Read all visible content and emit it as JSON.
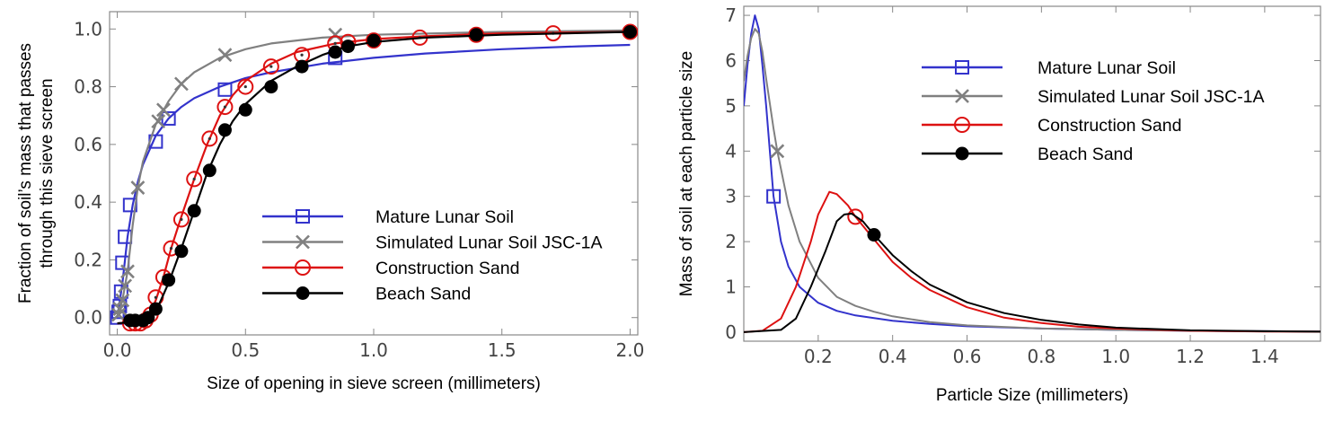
{
  "chart_data": [
    {
      "type": "line",
      "xlabel": "Size of opening in sieve screen (millimeters)",
      "ylabel_lines": [
        "Fraction of soil’s mass that passes",
        "through this sieve screen"
      ],
      "xlim": [
        -0.03,
        2.03
      ],
      "ylim": [
        -0.06,
        1.06
      ],
      "xticks": [
        0.0,
        0.5,
        1.0,
        1.5,
        2.0
      ],
      "xtick_labels": [
        "0.0",
        "0.5",
        "1.0",
        "1.5",
        "2.0"
      ],
      "yticks": [
        0.0,
        0.2,
        0.4,
        0.6,
        0.8,
        1.0
      ],
      "ytick_labels": [
        "0.0",
        "0.2",
        "0.4",
        "0.6",
        "0.8",
        "1.0"
      ],
      "grid": false,
      "legend_position": "bottom-right",
      "series": [
        {
          "name": "Mature Lunar Soil",
          "color": "#3333cc",
          "marker": "open-square",
          "points": [
            [
              0.0,
              0.0
            ],
            [
              0.005,
              0.02
            ],
            [
              0.01,
              0.04
            ],
            [
              0.015,
              0.09
            ],
            [
              0.02,
              0.19
            ],
            [
              0.03,
              0.28
            ],
            [
              0.05,
              0.39
            ],
            [
              0.15,
              0.61
            ],
            [
              0.2,
              0.69
            ],
            [
              0.42,
              0.79
            ],
            [
              0.85,
              0.9
            ]
          ],
          "curve": [
            [
              0.0,
              0.0
            ],
            [
              0.02,
              0.12
            ],
            [
              0.04,
              0.28
            ],
            [
              0.06,
              0.39
            ],
            [
              0.08,
              0.47
            ],
            [
              0.1,
              0.53
            ],
            [
              0.15,
              0.63
            ],
            [
              0.2,
              0.69
            ],
            [
              0.25,
              0.73
            ],
            [
              0.3,
              0.76
            ],
            [
              0.4,
              0.8
            ],
            [
              0.5,
              0.83
            ],
            [
              0.6,
              0.85
            ],
            [
              0.8,
              0.88
            ],
            [
              1.0,
              0.9
            ],
            [
              1.2,
              0.915
            ],
            [
              1.5,
              0.93
            ],
            [
              1.8,
              0.94
            ],
            [
              2.0,
              0.945
            ]
          ]
        },
        {
          "name": "Simulated Lunar Soil JSC-1A",
          "color": "#808080",
          "marker": "x",
          "points": [
            [
              0.005,
              0.01
            ],
            [
              0.01,
              0.03
            ],
            [
              0.02,
              0.06
            ],
            [
              0.03,
              0.11
            ],
            [
              0.04,
              0.16
            ],
            [
              0.08,
              0.45
            ],
            [
              0.16,
              0.68
            ],
            [
              0.18,
              0.72
            ],
            [
              0.25,
              0.81
            ],
            [
              0.42,
              0.91
            ],
            [
              0.85,
              0.98
            ]
          ],
          "curve": [
            [
              0.0,
              0.0
            ],
            [
              0.02,
              0.06
            ],
            [
              0.04,
              0.16
            ],
            [
              0.06,
              0.32
            ],
            [
              0.08,
              0.45
            ],
            [
              0.1,
              0.54
            ],
            [
              0.15,
              0.67
            ],
            [
              0.2,
              0.75
            ],
            [
              0.25,
              0.81
            ],
            [
              0.3,
              0.85
            ],
            [
              0.4,
              0.9
            ],
            [
              0.5,
              0.93
            ],
            [
              0.6,
              0.95
            ],
            [
              0.8,
              0.97
            ],
            [
              1.0,
              0.98
            ],
            [
              1.5,
              0.99
            ],
            [
              2.0,
              0.995
            ]
          ]
        },
        {
          "name": "Construction Sand",
          "color": "#dd1111",
          "marker": "open-circle",
          "points": [
            [
              0.05,
              -0.02
            ],
            [
              0.07,
              -0.02
            ],
            [
              0.09,
              -0.02
            ],
            [
              0.11,
              -0.01
            ],
            [
              0.13,
              0.01
            ],
            [
              0.15,
              0.07
            ],
            [
              0.18,
              0.14
            ],
            [
              0.21,
              0.24
            ],
            [
              0.25,
              0.34
            ],
            [
              0.3,
              0.48
            ],
            [
              0.36,
              0.62
            ],
            [
              0.42,
              0.73
            ],
            [
              0.5,
              0.8
            ],
            [
              0.6,
              0.87
            ],
            [
              0.72,
              0.91
            ],
            [
              0.85,
              0.95
            ],
            [
              0.9,
              0.955
            ],
            [
              1.0,
              0.96
            ],
            [
              1.18,
              0.97
            ],
            [
              1.4,
              0.98
            ],
            [
              1.7,
              0.985
            ],
            [
              2.0,
              0.99
            ]
          ],
          "curve": [
            [
              0.0,
              -0.02
            ],
            [
              0.1,
              -0.015
            ],
            [
              0.12,
              0.0
            ],
            [
              0.15,
              0.06
            ],
            [
              0.18,
              0.14
            ],
            [
              0.21,
              0.24
            ],
            [
              0.25,
              0.35
            ],
            [
              0.3,
              0.48
            ],
            [
              0.35,
              0.6
            ],
            [
              0.4,
              0.7
            ],
            [
              0.45,
              0.77
            ],
            [
              0.5,
              0.82
            ],
            [
              0.6,
              0.88
            ],
            [
              0.7,
              0.92
            ],
            [
              0.85,
              0.95
            ],
            [
              1.0,
              0.965
            ],
            [
              1.2,
              0.975
            ],
            [
              1.5,
              0.985
            ],
            [
              2.0,
              0.99
            ]
          ]
        },
        {
          "name": "Beach Sand",
          "color": "#000000",
          "marker": "filled-circle",
          "points": [
            [
              0.05,
              -0.01
            ],
            [
              0.07,
              -0.01
            ],
            [
              0.1,
              -0.01
            ],
            [
              0.12,
              0.0
            ],
            [
              0.15,
              0.03
            ],
            [
              0.2,
              0.13
            ],
            [
              0.25,
              0.23
            ],
            [
              0.3,
              0.37
            ],
            [
              0.36,
              0.51
            ],
            [
              0.42,
              0.65
            ],
            [
              0.5,
              0.72
            ],
            [
              0.6,
              0.8
            ],
            [
              0.72,
              0.87
            ],
            [
              0.85,
              0.92
            ],
            [
              0.9,
              0.94
            ],
            [
              1.0,
              0.96
            ],
            [
              1.4,
              0.98
            ],
            [
              2.0,
              0.99
            ]
          ],
          "curve": [
            [
              0.0,
              -0.02
            ],
            [
              0.12,
              -0.01
            ],
            [
              0.15,
              0.02
            ],
            [
              0.2,
              0.12
            ],
            [
              0.25,
              0.24
            ],
            [
              0.3,
              0.37
            ],
            [
              0.35,
              0.5
            ],
            [
              0.4,
              0.6
            ],
            [
              0.45,
              0.68
            ],
            [
              0.5,
              0.74
            ],
            [
              0.6,
              0.82
            ],
            [
              0.7,
              0.87
            ],
            [
              0.8,
              0.91
            ],
            [
              0.9,
              0.94
            ],
            [
              1.0,
              0.955
            ],
            [
              1.2,
              0.97
            ],
            [
              1.5,
              0.98
            ],
            [
              2.0,
              0.99
            ]
          ]
        }
      ]
    },
    {
      "type": "line",
      "xlabel": "Particle Size (millimeters)",
      "ylabel": "Mass of soil at each particle size",
      "xlim": [
        0.0,
        1.55
      ],
      "ylim": [
        -0.2,
        7.2
      ],
      "xticks": [
        0.2,
        0.4,
        0.6,
        0.8,
        1.0,
        1.2,
        1.4
      ],
      "xtick_labels": [
        "0.2",
        "0.4",
        "0.6",
        "0.8",
        "1.0",
        "1.2",
        "1.4"
      ],
      "yticks": [
        0,
        1,
        2,
        3,
        4,
        5,
        6,
        7
      ],
      "ytick_labels": [
        "0",
        "1",
        "2",
        "3",
        "4",
        "5",
        "6",
        "7"
      ],
      "grid": false,
      "legend_position": "top-right",
      "series": [
        {
          "name": "Mature Lunar Soil",
          "color": "#3333cc",
          "marker": "open-square",
          "marker_points": [
            [
              0.08,
              3.0
            ]
          ],
          "curve": [
            [
              0.0,
              5.0
            ],
            [
              0.01,
              5.9
            ],
            [
              0.02,
              6.6
            ],
            [
              0.03,
              7.0
            ],
            [
              0.04,
              6.7
            ],
            [
              0.05,
              5.9
            ],
            [
              0.06,
              5.0
            ],
            [
              0.07,
              4.0
            ],
            [
              0.08,
              3.0
            ],
            [
              0.1,
              2.0
            ],
            [
              0.12,
              1.45
            ],
            [
              0.15,
              1.0
            ],
            [
              0.2,
              0.65
            ],
            [
              0.25,
              0.47
            ],
            [
              0.3,
              0.37
            ],
            [
              0.4,
              0.25
            ],
            [
              0.5,
              0.18
            ],
            [
              0.6,
              0.13
            ],
            [
              0.8,
              0.08
            ],
            [
              1.0,
              0.05
            ],
            [
              1.2,
              0.03
            ],
            [
              1.4,
              0.02
            ],
            [
              1.55,
              0.015
            ]
          ]
        },
        {
          "name": "Simulated Lunar Soil JSC-1A",
          "color": "#808080",
          "marker": "x",
          "marker_points": [
            [
              0.09,
              4.0
            ]
          ],
          "curve": [
            [
              0.0,
              5.55
            ],
            [
              0.01,
              6.1
            ],
            [
              0.02,
              6.5
            ],
            [
              0.03,
              6.7
            ],
            [
              0.04,
              6.6
            ],
            [
              0.05,
              6.2
            ],
            [
              0.06,
              5.6
            ],
            [
              0.08,
              4.5
            ],
            [
              0.09,
              4.0
            ],
            [
              0.12,
              2.8
            ],
            [
              0.15,
              2.0
            ],
            [
              0.2,
              1.2
            ],
            [
              0.25,
              0.78
            ],
            [
              0.3,
              0.58
            ],
            [
              0.35,
              0.45
            ],
            [
              0.4,
              0.35
            ],
            [
              0.5,
              0.22
            ],
            [
              0.6,
              0.15
            ],
            [
              0.8,
              0.08
            ],
            [
              1.0,
              0.05
            ],
            [
              1.2,
              0.03
            ],
            [
              1.55,
              0.015
            ]
          ]
        },
        {
          "name": "Construction Sand",
          "color": "#dd1111",
          "marker": "open-circle",
          "marker_points": [
            [
              0.3,
              2.55
            ]
          ],
          "curve": [
            [
              0.0,
              0.0
            ],
            [
              0.05,
              0.03
            ],
            [
              0.1,
              0.3
            ],
            [
              0.14,
              1.0
            ],
            [
              0.18,
              2.0
            ],
            [
              0.2,
              2.6
            ],
            [
              0.23,
              3.1
            ],
            [
              0.25,
              3.05
            ],
            [
              0.28,
              2.8
            ],
            [
              0.3,
              2.55
            ],
            [
              0.35,
              2.05
            ],
            [
              0.4,
              1.55
            ],
            [
              0.45,
              1.2
            ],
            [
              0.5,
              0.93
            ],
            [
              0.6,
              0.55
            ],
            [
              0.7,
              0.32
            ],
            [
              0.8,
              0.2
            ],
            [
              0.9,
              0.12
            ],
            [
              1.0,
              0.08
            ],
            [
              1.2,
              0.03
            ],
            [
              1.4,
              0.015
            ],
            [
              1.55,
              0.01
            ]
          ]
        },
        {
          "name": "Beach Sand",
          "color": "#000000",
          "marker": "filled-circle",
          "marker_points": [
            [
              0.35,
              2.15
            ]
          ],
          "curve": [
            [
              0.0,
              0.0
            ],
            [
              0.1,
              0.05
            ],
            [
              0.14,
              0.3
            ],
            [
              0.18,
              1.0
            ],
            [
              0.22,
              1.8
            ],
            [
              0.25,
              2.45
            ],
            [
              0.27,
              2.6
            ],
            [
              0.29,
              2.62
            ],
            [
              0.32,
              2.45
            ],
            [
              0.35,
              2.15
            ],
            [
              0.4,
              1.7
            ],
            [
              0.45,
              1.35
            ],
            [
              0.5,
              1.05
            ],
            [
              0.6,
              0.66
            ],
            [
              0.7,
              0.42
            ],
            [
              0.8,
              0.27
            ],
            [
              0.9,
              0.17
            ],
            [
              1.0,
              0.1
            ],
            [
              1.2,
              0.04
            ],
            [
              1.4,
              0.02
            ],
            [
              1.55,
              0.01
            ]
          ]
        }
      ]
    }
  ]
}
